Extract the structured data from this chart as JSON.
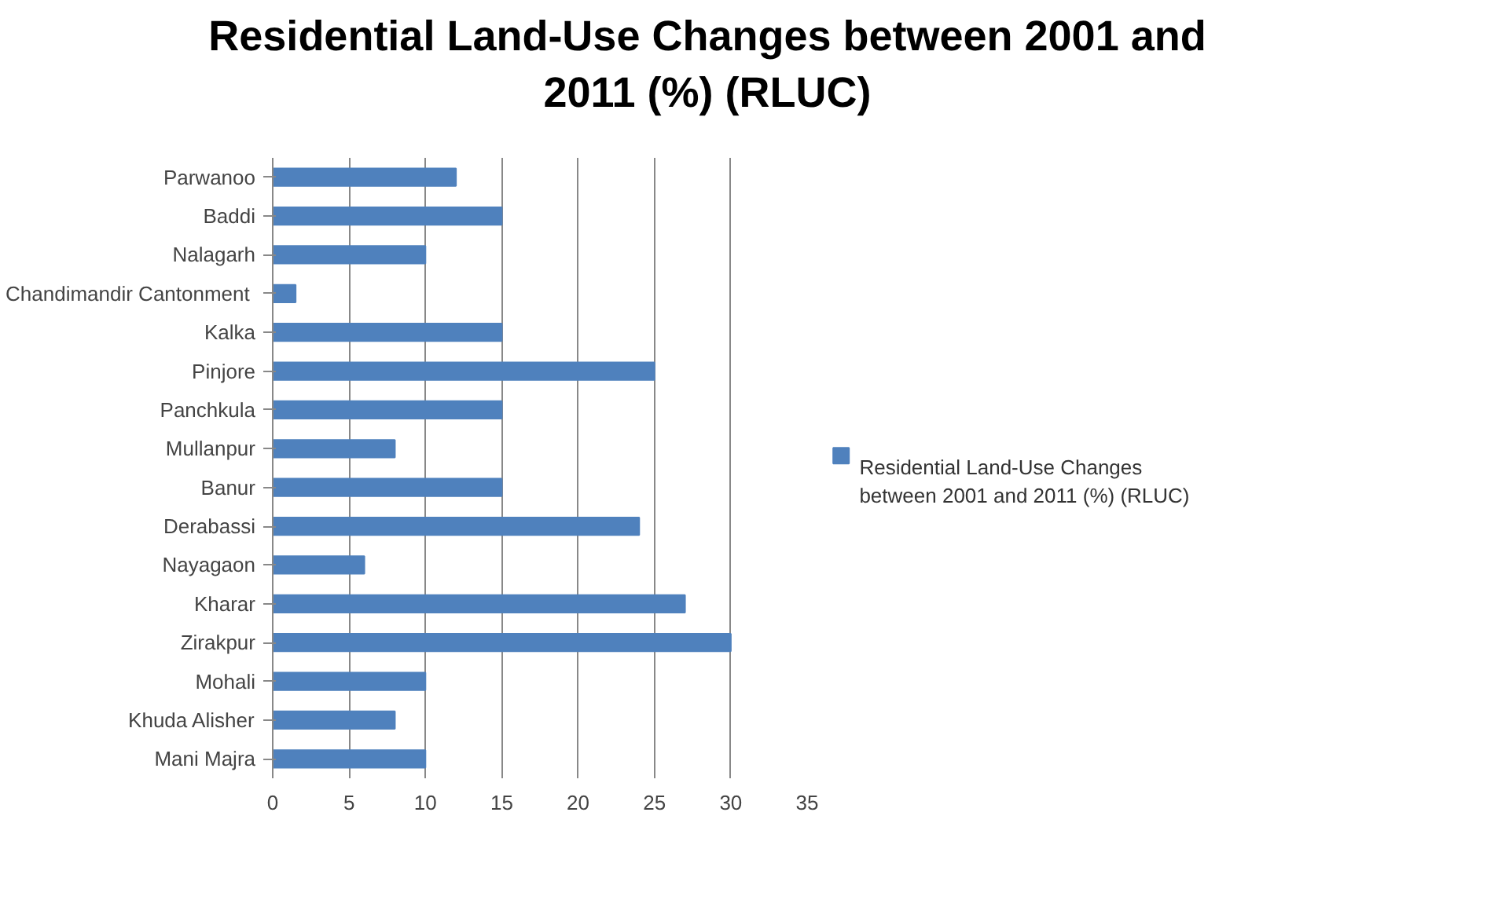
{
  "chart_data": {
    "type": "bar",
    "orientation": "horizontal",
    "title": "Residential Land-Use Changes between 2001 and\n2011 (%) (RLUC)",
    "categories": [
      "Parwanoo",
      "Baddi",
      "Nalagarh",
      "Chandimandir  Cantonment",
      "Kalka",
      "Pinjore",
      "Panchkula",
      "Mullanpur",
      "Banur",
      "Derabassi",
      "Nayagaon",
      "Kharar",
      "Zirakpur",
      "Mohali",
      "Khuda Alisher",
      "Mani Majra"
    ],
    "series": [
      {
        "name": "Residential Land-Use Changes\nbetween 2001 and 2011 (%) (RLUC)",
        "color": "#4f81bd",
        "values": [
          12,
          15,
          10,
          1.5,
          15,
          25,
          15,
          8,
          15,
          24,
          6,
          27,
          30,
          10,
          8,
          10
        ]
      }
    ],
    "xlim": [
      0,
      35
    ],
    "xticks": [
      0,
      5,
      10,
      15,
      20,
      25,
      30,
      35
    ],
    "grid": "x",
    "legend": "right"
  }
}
